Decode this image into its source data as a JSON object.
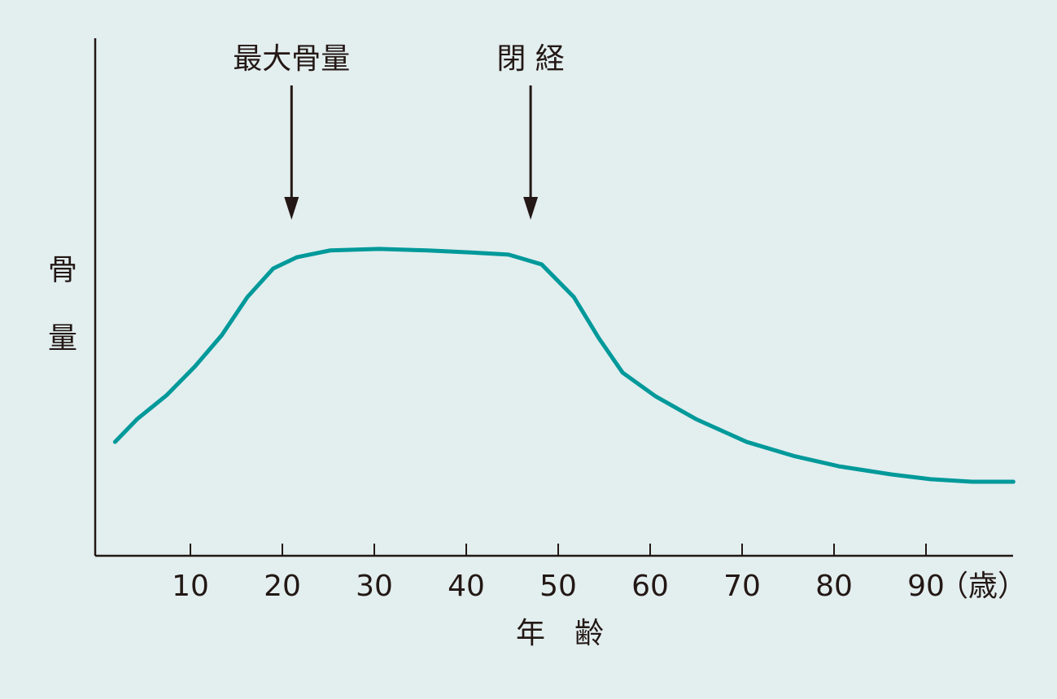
{
  "chart_data": {
    "type": "line",
    "x_label": "年　齢",
    "x_unit": "（歳）",
    "y_label": "骨量",
    "x": [
      1.8,
      4.2,
      7.4,
      10.5,
      13.4,
      16.2,
      19,
      21.6,
      25.2,
      30.5,
      35.8,
      40.5,
      44.6,
      48.2,
      51.7,
      54.4,
      57,
      60.6,
      65,
      70.5,
      75.6,
      80.5,
      86.3,
      90.5,
      95,
      99.5
    ],
    "series": [
      {
        "color": "#00999a",
        "values": [
          22,
          26.4,
          31,
          36.6,
          42.6,
          50,
          55.5,
          57.7,
          59,
          59.3,
          59,
          58.6,
          58.2,
          56.3,
          50,
          42.1,
          35.4,
          30.8,
          26.4,
          22,
          19.3,
          17.3,
          15.7,
          14.8,
          14.3,
          14.3
        ]
      }
    ],
    "annotations": [
      {
        "text": "最大骨量",
        "x": 21
      },
      {
        "text": "閉 経",
        "x": 47
      }
    ],
    "xlim": [
      0,
      100
    ],
    "ylim": [
      0,
      100
    ],
    "xticks": [
      10,
      20,
      30,
      40,
      50,
      60,
      70,
      80,
      90
    ]
  }
}
